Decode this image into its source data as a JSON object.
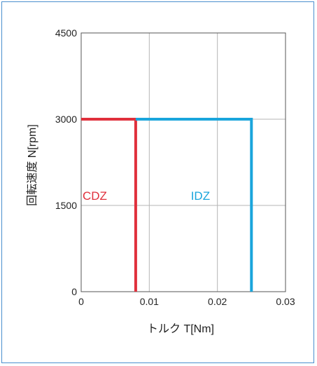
{
  "chart_data": {
    "type": "line",
    "title": "",
    "xlabel": "トルク T[Nm]",
    "ylabel": "回転速度 N[rpm]",
    "xlim": [
      0,
      0.03
    ],
    "ylim": [
      0,
      4500
    ],
    "xticks": [
      "0",
      "0.01",
      "0.02",
      "0.03"
    ],
    "yticks": [
      "0",
      "1500",
      "3000",
      "4500"
    ],
    "grid": true,
    "series": [
      {
        "name": "CDZ",
        "color": "#e0303c",
        "x": [
          0,
          0.008,
          0.008
        ],
        "y": [
          3000,
          3000,
          0
        ]
      },
      {
        "name": "IDZ",
        "color": "#1aa5dc",
        "x": [
          0.008,
          0.025,
          0.025
        ],
        "y": [
          3000,
          3000,
          0
        ]
      }
    ]
  }
}
